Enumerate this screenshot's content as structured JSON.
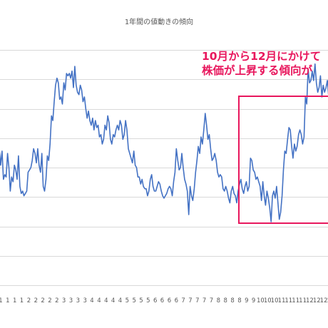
{
  "chart_data": {
    "type": "line",
    "title": "1年間の値動きの傾向",
    "xlabel": "",
    "ylabel": "",
    "ylim": [
      0,
      100
    ],
    "grid": true,
    "legend": "none",
    "x_tick_labels": [
      "1",
      "1",
      "1",
      "1",
      "2",
      "2",
      "2",
      "2",
      "2",
      "3",
      "3",
      "3",
      "3",
      "4",
      "4",
      "4",
      "4",
      "4",
      "5",
      "5",
      "5",
      "5",
      "6",
      "6",
      "6",
      "6",
      "7",
      "7",
      "7",
      "7",
      "7",
      "8",
      "8",
      "8",
      "8",
      "9",
      "9",
      "10",
      "10",
      "10",
      "11",
      "11",
      "11",
      "11",
      "12",
      "12",
      "12",
      "12"
    ],
    "series": [
      {
        "color": "#4472c4",
        "values": [
          58,
          51,
          57,
          45,
          47,
          46,
          56,
          50,
          40,
          46,
          44,
          51,
          49,
          45,
          55,
          42,
          39,
          40,
          38,
          39,
          40,
          48,
          49,
          50,
          53,
          58,
          56,
          52,
          58,
          51,
          48,
          56,
          42,
          40,
          45,
          55,
          53,
          60,
          72,
          70,
          78,
          85,
          88,
          86,
          79,
          80,
          77,
          86,
          83,
          90,
          89,
          90,
          88,
          91,
          84,
          93,
          85,
          82,
          81,
          85,
          83,
          78,
          80,
          75,
          71,
          74,
          70,
          68,
          71,
          66,
          70,
          67,
          68,
          63,
          64,
          60,
          62,
          68,
          66,
          72,
          69,
          62,
          60,
          64,
          63,
          66,
          68,
          66,
          70,
          68,
          62,
          64,
          70,
          66,
          58,
          56,
          54,
          52,
          57,
          51,
          50,
          46,
          46,
          43,
          45,
          42,
          41,
          41,
          38,
          40,
          45,
          47,
          42,
          40,
          40,
          42,
          44,
          43,
          40,
          38,
          37,
          38,
          39,
          41,
          42,
          41,
          38,
          44,
          48,
          58,
          53,
          49,
          50,
          56,
          50,
          45,
          43,
          40,
          30,
          42,
          38,
          36,
          41,
          48,
          53,
          59,
          56,
          63,
          60,
          66,
          73,
          68,
          62,
          64,
          58,
          53,
          54,
          56,
          53,
          48,
          46,
          47,
          46,
          41,
          40,
          42,
          40,
          37,
          35,
          40,
          42,
          39,
          38,
          35,
          40,
          43,
          45,
          41,
          39,
          42,
          44,
          40,
          42,
          54,
          53,
          49,
          48,
          45,
          46,
          44,
          42,
          36,
          44,
          38,
          34,
          40,
          37,
          33,
          27,
          38,
          40,
          37,
          42,
          35,
          28,
          31,
          38,
          49,
          57,
          56,
          62,
          67,
          66,
          59,
          54,
          60,
          57,
          59,
          64,
          66,
          64,
          60,
          63,
          80,
          77,
          92,
          86,
          87,
          91,
          87,
          94,
          86,
          82,
          84,
          89,
          80,
          85,
          82,
          84,
          87,
          80
        ]
      }
    ],
    "annotation": {
      "text_line1": "10月から12月にかけて",
      "text_line2": "株価が上昇する傾向が"
    }
  }
}
